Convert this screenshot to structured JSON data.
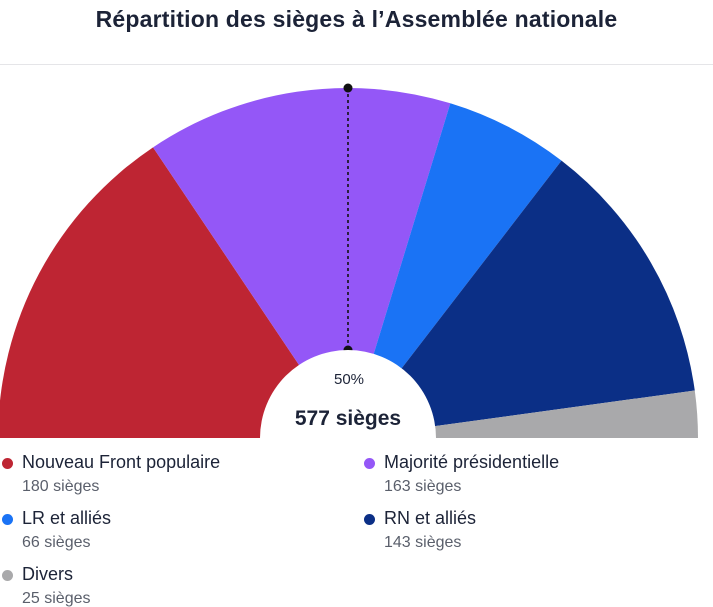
{
  "title": "Répartition des sièges à l’Assemblée nationale",
  "majority_label": "50%",
  "total_label": "577 sièges",
  "chart_data": {
    "type": "pie",
    "variant": "hemicycle",
    "title": "Répartition des sièges à l’Assemblée nationale",
    "total": 577,
    "majority_fraction": 0.5,
    "series": [
      {
        "name": "Nouveau Front populaire",
        "value": 180,
        "seats_label": "180 sièges",
        "color": "#be2533"
      },
      {
        "name": "Majorité présidentielle",
        "value": 163,
        "seats_label": "163 sièges",
        "color": "#9457f7"
      },
      {
        "name": "LR et alliés",
        "value": 66,
        "seats_label": "66 sièges",
        "color": "#1a73f5"
      },
      {
        "name": "RN et alliés",
        "value": 143,
        "seats_label": "143 sièges",
        "color": "#0b2f86"
      },
      {
        "name": "Divers",
        "value": 25,
        "seats_label": "25 sièges",
        "color": "#a9a9ab"
      }
    ]
  }
}
